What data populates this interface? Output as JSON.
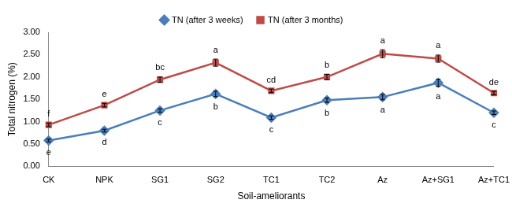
{
  "chart_data": {
    "type": "line",
    "x_label": "Soil-ameliorants",
    "y_label": "Total nitrogen (%)",
    "categories": [
      "CK",
      "NPK",
      "SG1",
      "SG2",
      "TC1",
      "TC2",
      "Az",
      "Az+SG1",
      "Az+TC1"
    ],
    "series": [
      {
        "name": "TN (after 3 weeks)",
        "color": "#4a7ebb",
        "marker": "diamond",
        "values": [
          0.58,
          0.8,
          1.25,
          1.62,
          1.09,
          1.48,
          1.55,
          1.87,
          1.2
        ],
        "errors": [
          0.03,
          0.03,
          0.04,
          0.06,
          0.04,
          0.05,
          0.06,
          0.08,
          0.04
        ],
        "letters": [
          "e",
          "d",
          "c",
          "b",
          "c",
          "b",
          "a",
          "a",
          "c"
        ]
      },
      {
        "name": "TN (after 3 months)",
        "color": "#be4b48",
        "marker": "square",
        "values": [
          0.93,
          1.37,
          1.94,
          2.32,
          1.69,
          2.0,
          2.52,
          2.41,
          1.64
        ],
        "errors": [
          0.04,
          0.04,
          0.06,
          0.08,
          0.04,
          0.06,
          0.09,
          0.08,
          0.04
        ],
        "letters": [
          "f",
          "e",
          "bc",
          "a",
          "cd",
          "b",
          "a",
          "a",
          "de"
        ]
      }
    ],
    "ylim": [
      0,
      3
    ],
    "yticks": [
      {
        "value": 0,
        "label": "0.00"
      },
      {
        "value": 0.5,
        "label": "0.50"
      },
      {
        "value": 1,
        "label": "1.00"
      },
      {
        "value": 1.5,
        "label": "1.50"
      },
      {
        "value": 2,
        "label": "2.00"
      },
      {
        "value": 2.5,
        "label": "2.50"
      },
      {
        "value": 3,
        "label": "3.00"
      }
    ],
    "grid": false,
    "legend": "top"
  }
}
